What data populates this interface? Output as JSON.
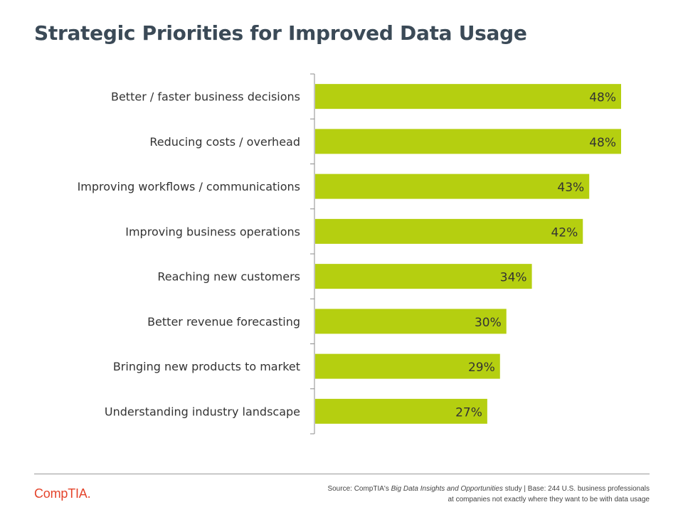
{
  "chart_data": {
    "type": "bar",
    "orientation": "horizontal",
    "title": "Strategic Priorities for Improved Data Usage",
    "categories": [
      "Better / faster business decisions",
      "Reducing costs / overhead",
      "Improving workflows / communications",
      "Improving business operations",
      "Reaching new customers",
      "Better revenue forecasting",
      "Bringing new products to market",
      "Understanding industry landscape"
    ],
    "values": [
      48,
      48,
      43,
      42,
      34,
      30,
      29,
      27
    ],
    "value_labels": [
      "48%",
      "48%",
      "43%",
      "42%",
      "34%",
      "30%",
      "29%",
      "27%"
    ],
    "xlim": [
      0,
      48
    ],
    "grid": false,
    "bar_color": "#b5cf10"
  },
  "footer": {
    "logo_text": "CompTIA",
    "logo_mark": ".",
    "source_prefix": "Source: CompTIA's ",
    "source_study": "Big Data Insights and Opportunities",
    "source_suffix": " study | Base: 244 U.S. business professionals",
    "source_line2": "at companies not exactly where they want to be with data usage"
  },
  "colors": {
    "title": "#3b4a57",
    "logo": "#e4442b"
  }
}
